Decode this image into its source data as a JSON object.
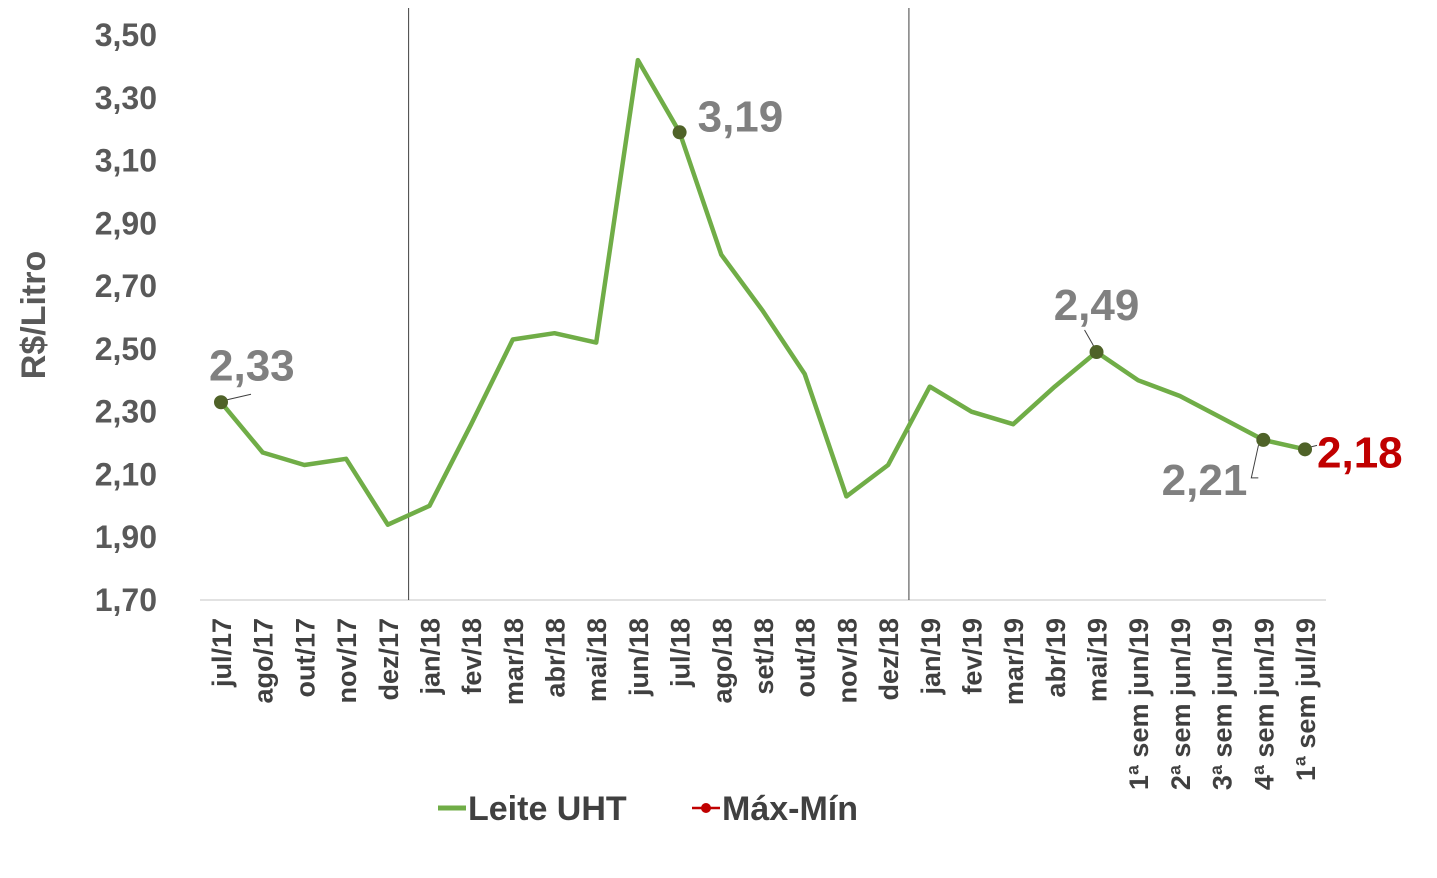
{
  "chart_data": {
    "type": "line",
    "ylabel": "R$/Litro",
    "xlabel": "",
    "title": "",
    "ylim": [
      1.7,
      3.5
    ],
    "y_ticks": [
      "1,70",
      "1,90",
      "2,10",
      "2,30",
      "2,50",
      "2,70",
      "2,90",
      "3,10",
      "3,30",
      "3,50"
    ],
    "categories": [
      "jul/17",
      "ago/17",
      "out/17",
      "nov/17",
      "dez/17",
      "jan/18",
      "fev/18",
      "mar/18",
      "abr/18",
      "mai/18",
      "jun/18",
      "jul/18",
      "ago/18",
      "set/18",
      "out/18",
      "nov/18",
      "dez/18",
      "jan/19",
      "fev/19",
      "mar/19",
      "abr/19",
      "mai/19",
      "1ª sem jun/19",
      "2ª sem jun/19",
      "3ª sem jun/19",
      "4ª sem jun/19",
      "1ª sem jul/19"
    ],
    "series": [
      {
        "name": "Leite UHT",
        "color": "#70AD47",
        "values": [
          2.33,
          2.17,
          2.13,
          2.15,
          1.94,
          2.0,
          2.26,
          2.53,
          2.55,
          2.52,
          3.42,
          3.19,
          2.8,
          2.62,
          2.42,
          2.03,
          2.13,
          2.38,
          2.3,
          2.26,
          2.38,
          2.49,
          2.4,
          2.35,
          2.28,
          2.21,
          2.18
        ]
      }
    ],
    "legend": {
      "position": "bottom",
      "entries": [
        {
          "label": "Leite UHT",
          "color": "#70AD47"
        },
        {
          "label": "Máx-Mín",
          "color": "#C00000"
        }
      ]
    },
    "year_separators_after": [
      "dez/17",
      "dez/18"
    ],
    "markers_color": "#4F6228",
    "annotations": [
      {
        "index": 0,
        "label": "2,33",
        "color": "#808080"
      },
      {
        "index": 11,
        "label": "3,19",
        "color": "#808080"
      },
      {
        "index": 21,
        "label": "2,49",
        "color": "#808080"
      },
      {
        "index": 25,
        "label": "2,21",
        "color": "#808080"
      },
      {
        "index": 26,
        "label": "2,18",
        "color": "#C00000"
      }
    ],
    "grid": false
  }
}
